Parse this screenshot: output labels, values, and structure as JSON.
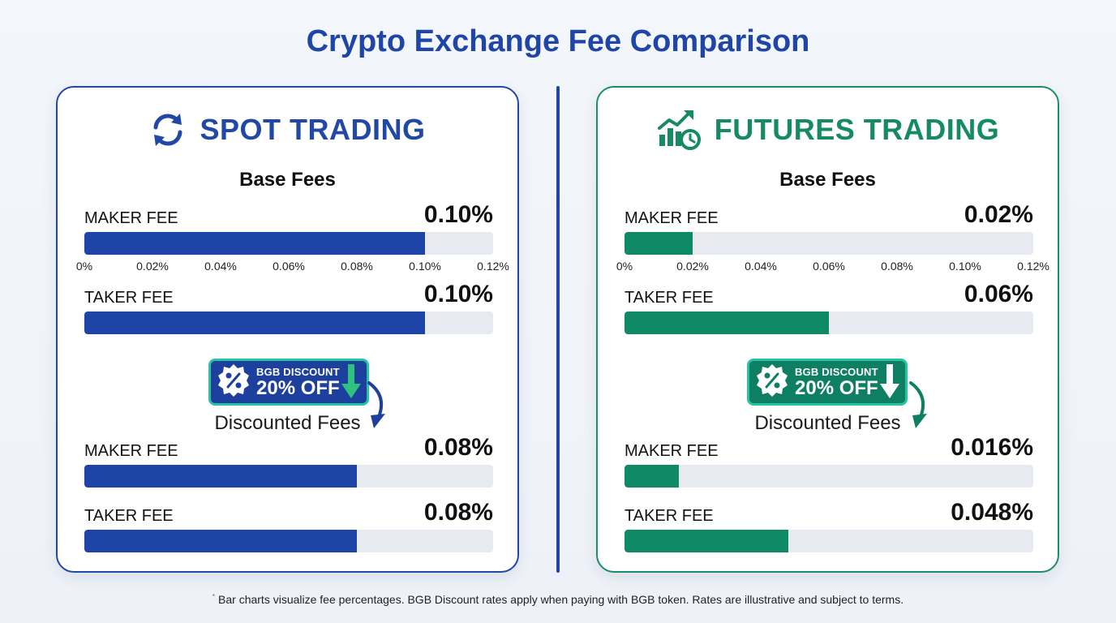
{
  "title": "Crypto Exchange Fee Comparison",
  "colors": {
    "spot": "#1e44a8",
    "futures": "#0e8a67",
    "track": "#e7ebf1",
    "badge_border": "#26c4a3"
  },
  "footnote": "Bar charts visualize fee percentages. BGB Discount rates apply when paying with BGB token. Rates are illustrative and subject to terms.",
  "footnote_mark": "*",
  "chart_data": [
    {
      "type": "bar",
      "orientation": "horizontal",
      "panel": "SPOT TRADING",
      "icon": "refresh-arrows-icon",
      "xlim": [
        0,
        0.12
      ],
      "ticks": [
        "0%",
        "0.02%",
        "0.04%",
        "0.06%",
        "0.08%",
        "0.10%",
        "0.12%"
      ],
      "base": {
        "title": "Base Fees",
        "bars": [
          {
            "label": "MAKER FEE",
            "value": 0.1,
            "display": "0.10%"
          },
          {
            "label": "TAKER FEE",
            "value": 0.1,
            "display": "0.10%"
          }
        ]
      },
      "badge": {
        "line1": "BGB DISCOUNT",
        "line2": "20% OFF"
      },
      "discounted": {
        "title": "Discounted Fees",
        "bars": [
          {
            "label": "MAKER FEE",
            "value": 0.08,
            "display": "0.08%"
          },
          {
            "label": "TAKER FEE",
            "value": 0.08,
            "display": "0.08%"
          }
        ]
      }
    },
    {
      "type": "bar",
      "orientation": "horizontal",
      "panel": "FUTURES TRADING",
      "icon": "growth-chart-clock-icon",
      "xlim": [
        0,
        0.12
      ],
      "ticks": [
        "0%",
        "0.02%",
        "0.04%",
        "0.06%",
        "0.08%",
        "0.10%",
        "0.12%"
      ],
      "base": {
        "title": "Base Fees",
        "bars": [
          {
            "label": "MAKER FEE",
            "value": 0.02,
            "display": "0.02%"
          },
          {
            "label": "TAKER FEE",
            "value": 0.06,
            "display": "0.06%"
          }
        ]
      },
      "badge": {
        "line1": "BGB DISCOUNT",
        "line2": "20% OFF"
      },
      "discounted": {
        "title": "Discounted Fees",
        "bars": [
          {
            "label": "MAKER FEE",
            "value": 0.016,
            "display": "0.016%"
          },
          {
            "label": "TAKER FEE",
            "value": 0.048,
            "display": "0.048%"
          }
        ]
      }
    }
  ]
}
